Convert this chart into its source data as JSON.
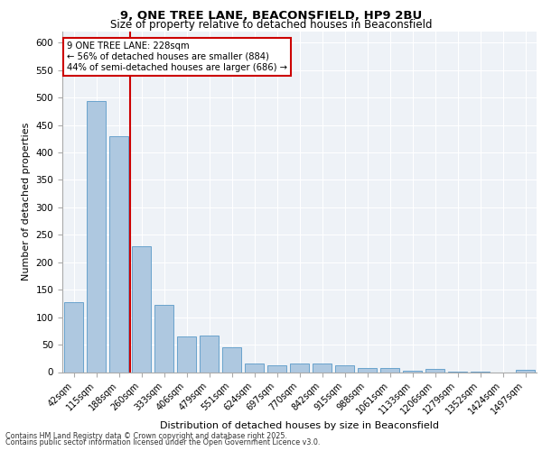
{
  "title1": "9, ONE TREE LANE, BEACONSFIELD, HP9 2BU",
  "title2": "Size of property relative to detached houses in Beaconsfield",
  "xlabel": "Distribution of detached houses by size in Beaconsfield",
  "ylabel": "Number of detached properties",
  "categories": [
    "42sqm",
    "115sqm",
    "188sqm",
    "260sqm",
    "333sqm",
    "406sqm",
    "479sqm",
    "551sqm",
    "624sqm",
    "697sqm",
    "770sqm",
    "842sqm",
    "915sqm",
    "988sqm",
    "1061sqm",
    "1133sqm",
    "1206sqm",
    "1279sqm",
    "1352sqm",
    "1424sqm",
    "1497sqm"
  ],
  "values": [
    128,
    493,
    430,
    229,
    123,
    65,
    67,
    45,
    15,
    12,
    16,
    15,
    12,
    8,
    7,
    3,
    5,
    1,
    1,
    0,
    4
  ],
  "bar_color": "#aec8e0",
  "bar_edgecolor": "#5a9ac8",
  "redline_x": 2.5,
  "annotation_line1": "9 ONE TREE LANE: 228sqm",
  "annotation_line2": "← 56% of detached houses are smaller (884)",
  "annotation_line3": "44% of semi-detached houses are larger (686) →",
  "annotation_box_color": "#ffffff",
  "annotation_box_edgecolor": "#cc0000",
  "redline_color": "#cc0000",
  "background_color": "#eef2f7",
  "grid_color": "#ffffff",
  "footer1": "Contains HM Land Registry data © Crown copyright and database right 2025.",
  "footer2": "Contains public sector information licensed under the Open Government Licence v3.0.",
  "ylim": [
    0,
    620
  ],
  "yticks": [
    0,
    50,
    100,
    150,
    200,
    250,
    300,
    350,
    400,
    450,
    500,
    550,
    600
  ]
}
